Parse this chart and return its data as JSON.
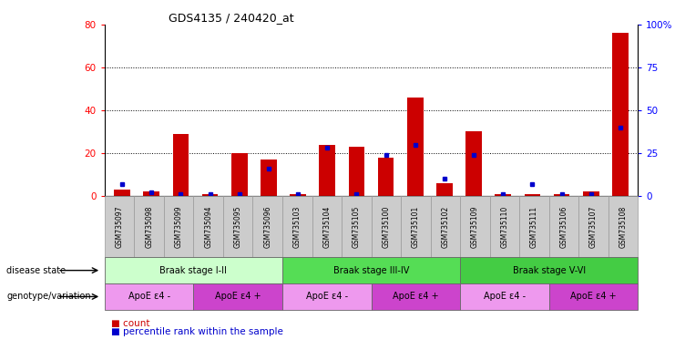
{
  "title": "GDS4135 / 240420_at",
  "samples": [
    "GSM735097",
    "GSM735098",
    "GSM735099",
    "GSM735094",
    "GSM735095",
    "GSM735096",
    "GSM735103",
    "GSM735104",
    "GSM735105",
    "GSM735100",
    "GSM735101",
    "GSM735102",
    "GSM735109",
    "GSM735110",
    "GSM735111",
    "GSM735106",
    "GSM735107",
    "GSM735108"
  ],
  "counts": [
    3,
    2,
    29,
    1,
    20,
    17,
    1,
    24,
    23,
    18,
    46,
    6,
    30,
    1,
    1,
    1,
    2,
    76
  ],
  "percentiles": [
    7,
    2,
    1,
    1,
    1,
    16,
    1,
    28,
    1,
    24,
    30,
    10,
    24,
    1,
    7,
    1,
    1,
    40
  ],
  "ylim_left": [
    0,
    80
  ],
  "ylim_right": [
    0,
    100
  ],
  "yticks_left": [
    0,
    20,
    40,
    60,
    80
  ],
  "yticks_right": [
    0,
    25,
    50,
    75,
    100
  ],
  "ytick_labels_right": [
    "0",
    "25",
    "50",
    "75",
    "100%"
  ],
  "bar_color": "#cc0000",
  "dot_color": "#0000cc",
  "disease_state_label": "disease state",
  "genotype_label": "genotype/variation",
  "braak_stages": [
    {
      "label": "Braak stage I-II",
      "start": 0,
      "end": 6,
      "color": "#ccffcc"
    },
    {
      "label": "Braak stage III-IV",
      "start": 6,
      "end": 12,
      "color": "#55dd55"
    },
    {
      "label": "Braak stage V-VI",
      "start": 12,
      "end": 18,
      "color": "#44cc44"
    }
  ],
  "genotypes": [
    {
      "label": "ApoE ε4 -",
      "start": 0,
      "end": 3,
      "color": "#ee99ee"
    },
    {
      "label": "ApoE ε4 +",
      "start": 3,
      "end": 6,
      "color": "#cc44cc"
    },
    {
      "label": "ApoE ε4 -",
      "start": 6,
      "end": 9,
      "color": "#ee99ee"
    },
    {
      "label": "ApoE ε4 +",
      "start": 9,
      "end": 12,
      "color": "#cc44cc"
    },
    {
      "label": "ApoE ε4 -",
      "start": 12,
      "end": 15,
      "color": "#ee99ee"
    },
    {
      "label": "ApoE ε4 +",
      "start": 15,
      "end": 18,
      "color": "#cc44cc"
    }
  ],
  "xtick_bg": "#cccccc",
  "xtick_edge": "#999999",
  "legend_count_color": "#cc0000",
  "legend_dot_color": "#0000cc",
  "background_color": "#ffffff"
}
